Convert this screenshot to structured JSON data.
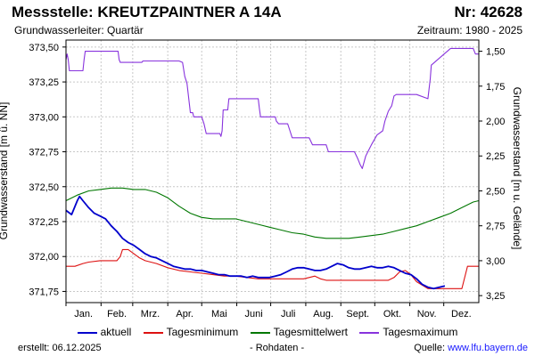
{
  "header": {
    "title": "Messstelle: KREUTZPAINTNER A 14A",
    "number": "Nr: 42628",
    "aquifer": "Grundwasserleiter: Quartär",
    "period": "Zeitraum: 1980 - 2025"
  },
  "footer": {
    "created": "erstellt:  06.12.2025",
    "rawdata": "- Rohdaten -",
    "source_label": "Quelle: ",
    "source_url": "www.lfu.bayern.de"
  },
  "colors": {
    "aktuell": "#0000cc",
    "minimum": "#dd1111",
    "mittel": "#007700",
    "maximum": "#8833dd",
    "grid": "#c8c8c8",
    "plot_bg": "#ffffff"
  },
  "chart_data": {
    "type": "line",
    "ylabel_left": "Grundwasserstand [m ü. NN]",
    "ylabel_right": "Grundwasserstand [m u. Gelände]",
    "months": [
      "Jan.",
      "Feb.",
      "Mrz.",
      "Apr.",
      "Mai",
      "Juni",
      "Juli",
      "Aug.",
      "Sept.",
      "Okt.",
      "Nov.",
      "Dez."
    ],
    "xlim": [
      0,
      365
    ],
    "ylim": [
      371.67,
      373.55
    ],
    "yticks_left": [
      "373,50",
      "373,25",
      "373,00",
      "372,75",
      "372,50",
      "372,25",
      "372,00",
      "371,75"
    ],
    "yticks_left_values": [
      373.5,
      373.25,
      373.0,
      372.75,
      372.5,
      372.25,
      372.0,
      371.75
    ],
    "yticks_right": [
      "1,50",
      "1,75",
      "2,00",
      "2,25",
      "2,50",
      "2,75",
      "3,00",
      "3,25"
    ],
    "yticks_right_values": [
      373.47,
      373.22,
      372.97,
      372.72,
      372.47,
      372.22,
      371.97,
      371.72
    ],
    "grid": true,
    "legend_position": "bottom",
    "series": [
      {
        "name": "aktuell",
        "key": "aktuell",
        "x": [
          0,
          5,
          10,
          12,
          15,
          20,
          25,
          30,
          35,
          40,
          45,
          50,
          55,
          60,
          65,
          70,
          75,
          80,
          85,
          90,
          95,
          100,
          105,
          110,
          115,
          120,
          125,
          130,
          135,
          140,
          145,
          150,
          155,
          160,
          165,
          170,
          175,
          180,
          185,
          190,
          195,
          200,
          205,
          210,
          215,
          220,
          225,
          230,
          235,
          240,
          245,
          250,
          255,
          260,
          265,
          270,
          275,
          280,
          285,
          290,
          295,
          300,
          305,
          310,
          315,
          320,
          325,
          330,
          335
        ],
        "y": [
          372.33,
          372.3,
          372.4,
          372.43,
          372.4,
          372.35,
          372.31,
          372.29,
          372.27,
          372.22,
          372.18,
          372.13,
          372.1,
          372.08,
          372.05,
          372.02,
          372.0,
          371.99,
          371.97,
          371.95,
          371.93,
          371.92,
          371.91,
          371.91,
          371.9,
          371.9,
          371.89,
          371.88,
          371.87,
          371.87,
          371.86,
          371.86,
          371.86,
          371.85,
          371.86,
          371.85,
          371.85,
          371.85,
          371.86,
          371.87,
          371.89,
          371.91,
          371.92,
          371.92,
          371.91,
          371.9,
          371.9,
          371.91,
          371.93,
          371.95,
          371.94,
          371.92,
          371.91,
          371.91,
          371.92,
          371.93,
          371.92,
          371.92,
          371.93,
          371.92,
          371.9,
          371.88,
          371.87,
          371.84,
          371.8,
          371.78,
          371.77,
          371.78,
          371.79
        ]
      },
      {
        "name": "Tagesminimum",
        "key": "minimum",
        "x": [
          0,
          8,
          15,
          20,
          30,
          40,
          45,
          48,
          50,
          55,
          60,
          65,
          70,
          80,
          90,
          100,
          110,
          120,
          130,
          140,
          150,
          160,
          170,
          180,
          190,
          200,
          210,
          215,
          220,
          225,
          230,
          235,
          240,
          245,
          250,
          255,
          260,
          265,
          270,
          275,
          280,
          285,
          290,
          295,
          300,
          305,
          310,
          320,
          330,
          340,
          350,
          355,
          360,
          365
        ],
        "y": [
          371.93,
          371.93,
          371.95,
          371.96,
          371.97,
          371.97,
          371.97,
          372.0,
          372.05,
          372.05,
          372.02,
          371.99,
          371.97,
          371.95,
          371.92,
          371.9,
          371.89,
          371.88,
          371.87,
          371.86,
          371.86,
          371.85,
          371.84,
          371.84,
          371.84,
          371.84,
          371.84,
          371.85,
          371.86,
          371.84,
          371.83,
          371.83,
          371.83,
          371.83,
          371.83,
          371.83,
          371.83,
          371.83,
          371.83,
          371.83,
          371.83,
          371.83,
          371.85,
          371.89,
          371.9,
          371.87,
          371.82,
          371.77,
          371.77,
          371.77,
          371.77,
          371.93,
          371.93,
          371.93
        ]
      },
      {
        "name": "Tagesmittelwert",
        "key": "mittel",
        "x": [
          0,
          10,
          20,
          30,
          40,
          50,
          60,
          70,
          80,
          90,
          100,
          110,
          120,
          130,
          140,
          150,
          160,
          170,
          180,
          190,
          200,
          210,
          220,
          230,
          240,
          250,
          260,
          270,
          280,
          290,
          300,
          310,
          320,
          330,
          340,
          350,
          360,
          365
        ],
        "y": [
          372.4,
          372.44,
          372.47,
          372.48,
          372.49,
          372.49,
          372.48,
          372.48,
          372.46,
          372.42,
          372.36,
          372.31,
          372.28,
          372.27,
          372.27,
          372.27,
          372.25,
          372.23,
          372.21,
          372.19,
          372.17,
          372.16,
          372.14,
          372.13,
          372.13,
          372.13,
          372.14,
          372.15,
          372.16,
          372.18,
          372.2,
          372.22,
          372.25,
          372.28,
          372.31,
          372.35,
          372.39,
          372.4
        ]
      },
      {
        "name": "Tagesmaximum",
        "key": "maximum",
        "x": [
          0,
          1,
          2,
          3,
          15,
          16,
          17,
          46,
          47,
          48,
          67,
          68,
          100,
          103,
          105,
          107,
          110,
          112,
          113,
          120,
          122,
          124,
          136,
          137,
          138,
          139,
          143,
          144,
          145,
          170,
          171,
          172,
          183,
          185,
          186,
          188,
          196,
          198,
          200,
          205,
          215,
          218,
          220,
          225,
          230,
          232,
          235,
          240,
          255,
          258,
          260,
          262,
          265,
          270,
          275,
          280,
          282,
          285,
          288,
          290,
          292,
          293,
          294,
          300,
          310,
          320,
          321,
          322,
          323,
          330,
          340,
          345,
          350,
          360,
          362,
          365
        ],
        "y": [
          373.41,
          373.45,
          373.41,
          373.33,
          373.33,
          373.41,
          373.47,
          373.47,
          373.41,
          373.39,
          373.39,
          373.4,
          373.4,
          373.39,
          373.29,
          373.24,
          373.03,
          373.03,
          373.0,
          373.0,
          372.95,
          372.88,
          372.88,
          372.86,
          372.9,
          373.05,
          373.05,
          373.13,
          373.13,
          373.13,
          373.06,
          373.0,
          373.0,
          373.0,
          372.97,
          372.95,
          372.95,
          372.9,
          372.85,
          372.85,
          372.85,
          372.8,
          372.8,
          372.8,
          372.8,
          372.75,
          372.75,
          372.75,
          372.75,
          372.7,
          372.66,
          372.63,
          372.72,
          372.8,
          372.87,
          372.9,
          372.97,
          373.04,
          373.08,
          373.15,
          373.16,
          373.16,
          373.16,
          373.16,
          373.16,
          373.13,
          373.2,
          373.27,
          373.37,
          373.42,
          373.49,
          373.49,
          373.49,
          373.49,
          373.45,
          373.45
        ]
      }
    ]
  }
}
